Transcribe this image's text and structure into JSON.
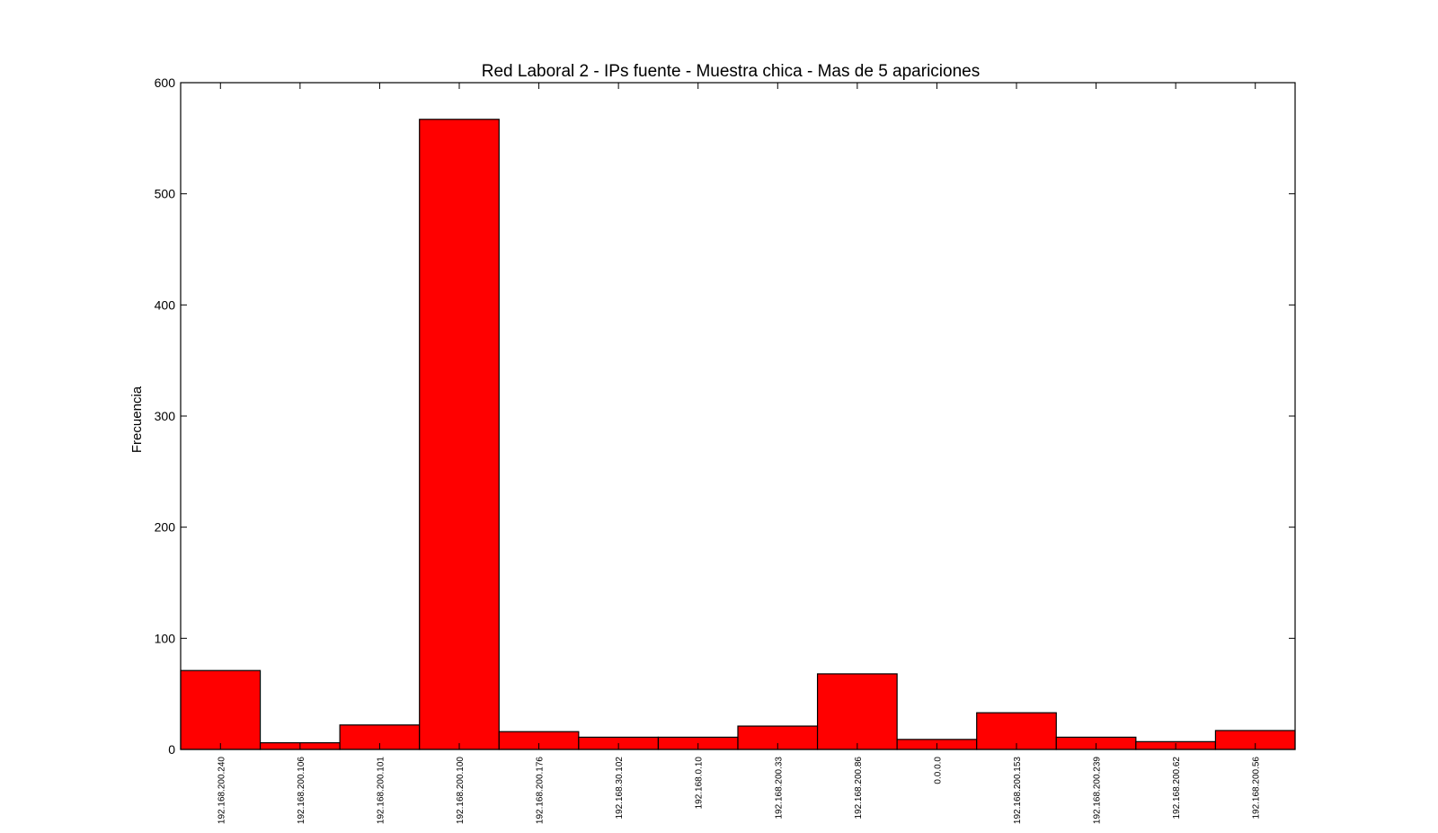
{
  "chart_data": {
    "type": "bar",
    "title": "Red Laboral 2 - IPs fuente - Muestra chica - Mas de 5 apariciones",
    "xlabel": "",
    "ylabel": "Frecuencia",
    "ylim": [
      0,
      600
    ],
    "yticks": [
      "0",
      "100",
      "200",
      "300",
      "400",
      "500",
      "600"
    ],
    "grid": false,
    "legend": "none",
    "bar_color": "#ff0000",
    "edge_color": "#000000",
    "categories": [
      "192.168.200.240",
      "192.168.200.106",
      "192.168.200.101",
      "192.168.200.100",
      "192.168.200.176",
      "192.168.30.102",
      "192.168.0.10",
      "192.168.200.33",
      "192.168.200.86",
      "0.0.0.0",
      "192.168.200.153",
      "192.168.200.239",
      "192.168.200.62",
      "192.168.200.56"
    ],
    "values": [
      71,
      6,
      22,
      567,
      16,
      11,
      11,
      21,
      68,
      9,
      33,
      11,
      7,
      17
    ]
  }
}
